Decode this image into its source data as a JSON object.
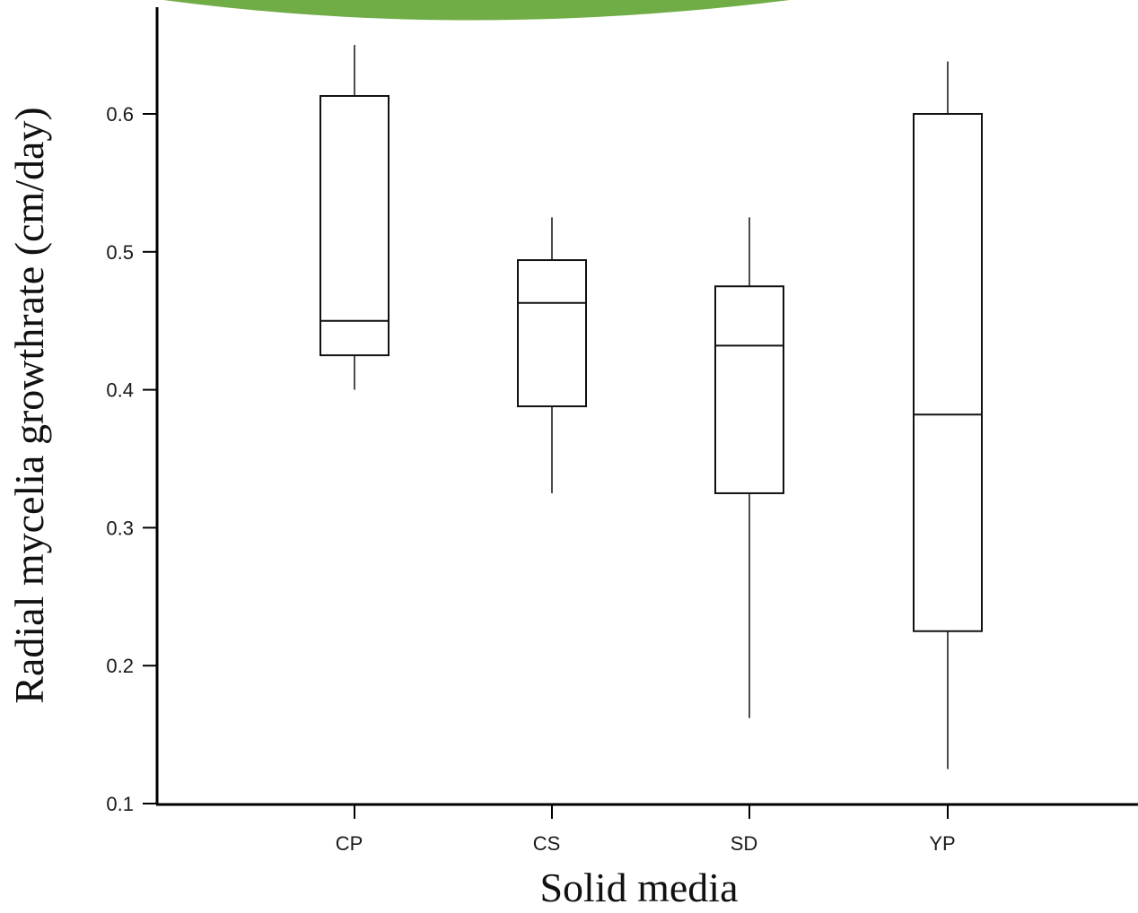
{
  "decoration": {
    "banner_color": "#70ad47"
  },
  "chart_data": {
    "type": "boxplot",
    "title": "",
    "xlabel": "Solid media",
    "ylabel": "Radial mycelia growthrate (cm/day)",
    "categories": [
      "CP",
      "CS",
      "SD",
      "YP"
    ],
    "ylim": [
      0.1,
      0.65
    ],
    "yticks": [
      0.1,
      0.2,
      0.3,
      0.4,
      0.5,
      0.6
    ],
    "grid": false,
    "legend": "none",
    "series": [
      {
        "boxes": [
          {
            "category": "CP",
            "whisker_low": 0.4,
            "q1": 0.425,
            "median": 0.45,
            "q3": 0.613,
            "whisker_high": 0.65
          },
          {
            "category": "CS",
            "whisker_low": 0.325,
            "q1": 0.388,
            "median": 0.463,
            "q3": 0.494,
            "whisker_high": 0.525
          },
          {
            "category": "SD",
            "whisker_low": 0.162,
            "q1": 0.325,
            "median": 0.432,
            "q3": 0.475,
            "whisker_high": 0.525
          },
          {
            "category": "YP",
            "whisker_low": 0.125,
            "q1": 0.225,
            "median": 0.382,
            "q3": 0.6,
            "whisker_high": 0.638
          }
        ]
      }
    ],
    "colors": {
      "box_stroke": "#111111",
      "axis": "#000000"
    }
  }
}
